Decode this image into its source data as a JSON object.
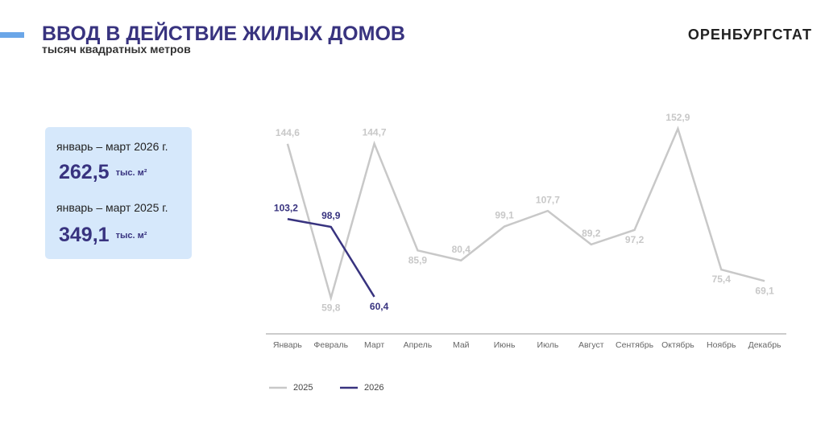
{
  "header": {
    "title": "ВВОД В ДЕЙСТВИЕ ЖИЛЫХ ДОМОВ",
    "subtitle": "тысяч квадратных метров",
    "logo": "ОРЕНБУРГСТАТ"
  },
  "summary": [
    {
      "period": "январь – март 2026 г.",
      "value": "262,5",
      "unit": "тыс. м²"
    },
    {
      "period": "январь – март 2025 г.",
      "value": "349,1",
      "unit": "тыс. м²"
    }
  ],
  "chart_data": {
    "type": "line",
    "categories": [
      "Январь",
      "Февраль",
      "Март",
      "Апрель",
      "Май",
      "Июнь",
      "Июль",
      "Август",
      "Сентябрь",
      "Октябрь",
      "Ноябрь",
      "Декабрь"
    ],
    "ylim": [
      40,
      160
    ],
    "series": [
      {
        "name": "2025",
        "color": "#c8c8c8",
        "values": [
          144.6,
          59.8,
          144.7,
          85.9,
          80.4,
          99.1,
          107.7,
          89.2,
          97.2,
          152.9,
          75.4,
          69.1
        ],
        "value_labels": [
          "144,6",
          "59,8",
          "144,7",
          "85,9",
          "80,4",
          "99,1",
          "107,7",
          "89,2",
          "97,2",
          "152,9",
          "75,4",
          "69,1"
        ]
      },
      {
        "name": "2026",
        "color": "#38337f",
        "values": [
          103.2,
          98.9,
          60.4,
          null,
          null,
          null,
          null,
          null,
          null,
          null,
          null,
          null
        ],
        "value_labels": [
          "103,2",
          "98,9",
          "60,4",
          null,
          null,
          null,
          null,
          null,
          null,
          null,
          null,
          null
        ]
      }
    ]
  }
}
